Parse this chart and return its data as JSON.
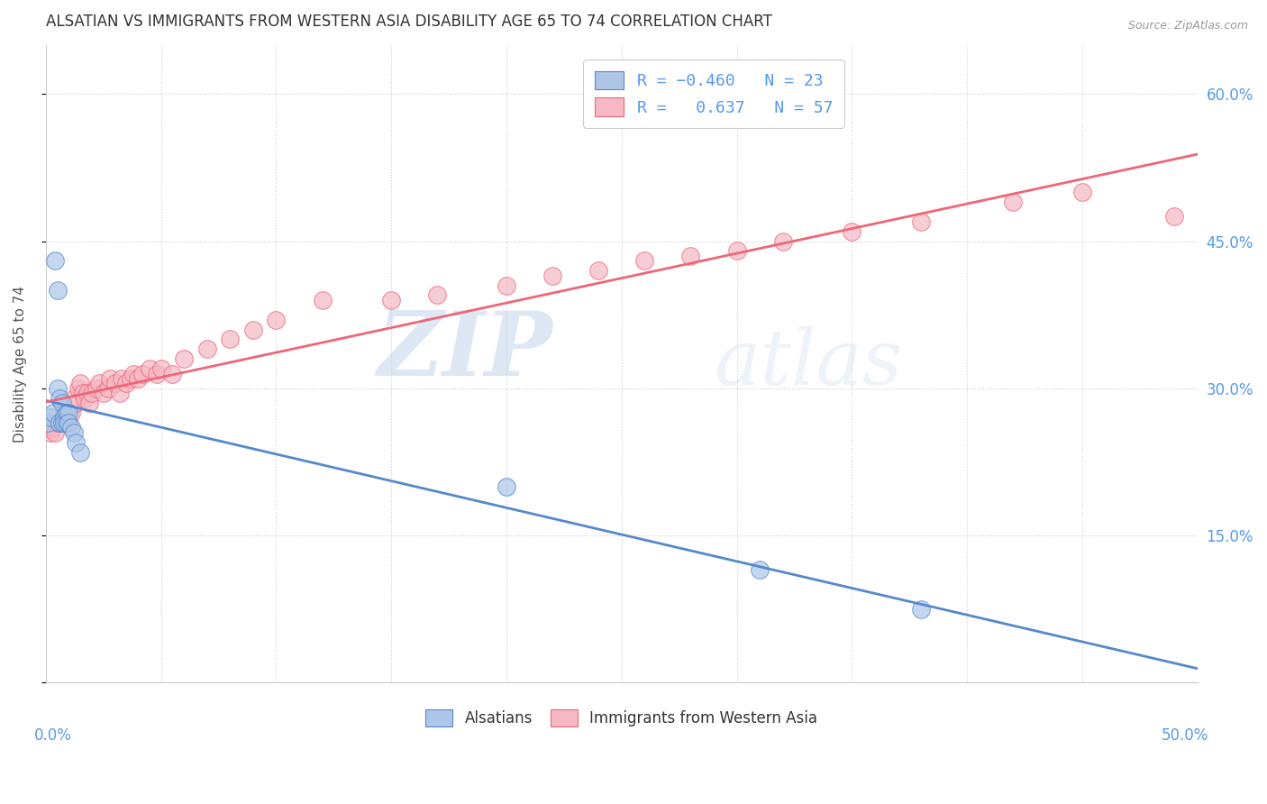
{
  "title": "ALSATIAN VS IMMIGRANTS FROM WESTERN ASIA DISABILITY AGE 65 TO 74 CORRELATION CHART",
  "source": "Source: ZipAtlas.com",
  "ylabel": "Disability Age 65 to 74",
  "xlim": [
    0.0,
    0.5
  ],
  "ylim": [
    0.0,
    0.65
  ],
  "blue_color": "#adc6e8",
  "pink_color": "#f5b8c4",
  "blue_line_color": "#5588cc",
  "pink_line_color": "#ee6677",
  "background_color": "#ffffff",
  "grid_color": "#cccccc",
  "title_color": "#333333",
  "axis_label_color": "#5599ee",
  "watermark_zip": "ZIP",
  "watermark_atlas": "atlas",
  "alsatians_x": [
    0.001,
    0.002,
    0.003,
    0.004,
    0.005,
    0.005,
    0.006,
    0.006,
    0.007,
    0.007,
    0.008,
    0.008,
    0.009,
    0.009,
    0.01,
    0.01,
    0.011,
    0.012,
    0.013,
    0.015,
    0.2,
    0.31,
    0.38
  ],
  "alsatians_y": [
    0.265,
    0.27,
    0.275,
    0.43,
    0.4,
    0.3,
    0.29,
    0.265,
    0.285,
    0.265,
    0.27,
    0.265,
    0.275,
    0.265,
    0.275,
    0.265,
    0.26,
    0.255,
    0.245,
    0.235,
    0.2,
    0.115,
    0.075
  ],
  "western_asia_x": [
    0.001,
    0.002,
    0.003,
    0.004,
    0.005,
    0.006,
    0.007,
    0.008,
    0.009,
    0.01,
    0.011,
    0.012,
    0.013,
    0.014,
    0.015,
    0.016,
    0.017,
    0.018,
    0.019,
    0.02,
    0.022,
    0.023,
    0.025,
    0.027,
    0.028,
    0.03,
    0.032,
    0.033,
    0.035,
    0.037,
    0.038,
    0.04,
    0.042,
    0.045,
    0.048,
    0.05,
    0.055,
    0.06,
    0.07,
    0.08,
    0.09,
    0.1,
    0.12,
    0.15,
    0.17,
    0.2,
    0.22,
    0.24,
    0.26,
    0.28,
    0.3,
    0.32,
    0.35,
    0.38,
    0.42,
    0.45,
    0.49
  ],
  "western_asia_y": [
    0.26,
    0.255,
    0.26,
    0.255,
    0.265,
    0.265,
    0.265,
    0.275,
    0.275,
    0.265,
    0.275,
    0.29,
    0.285,
    0.3,
    0.305,
    0.295,
    0.29,
    0.295,
    0.285,
    0.295,
    0.3,
    0.305,
    0.295,
    0.3,
    0.31,
    0.305,
    0.295,
    0.31,
    0.305,
    0.31,
    0.315,
    0.31,
    0.315,
    0.32,
    0.315,
    0.32,
    0.315,
    0.33,
    0.34,
    0.35,
    0.36,
    0.37,
    0.39,
    0.39,
    0.395,
    0.405,
    0.415,
    0.42,
    0.43,
    0.435,
    0.44,
    0.45,
    0.46,
    0.47,
    0.49,
    0.5,
    0.475
  ]
}
